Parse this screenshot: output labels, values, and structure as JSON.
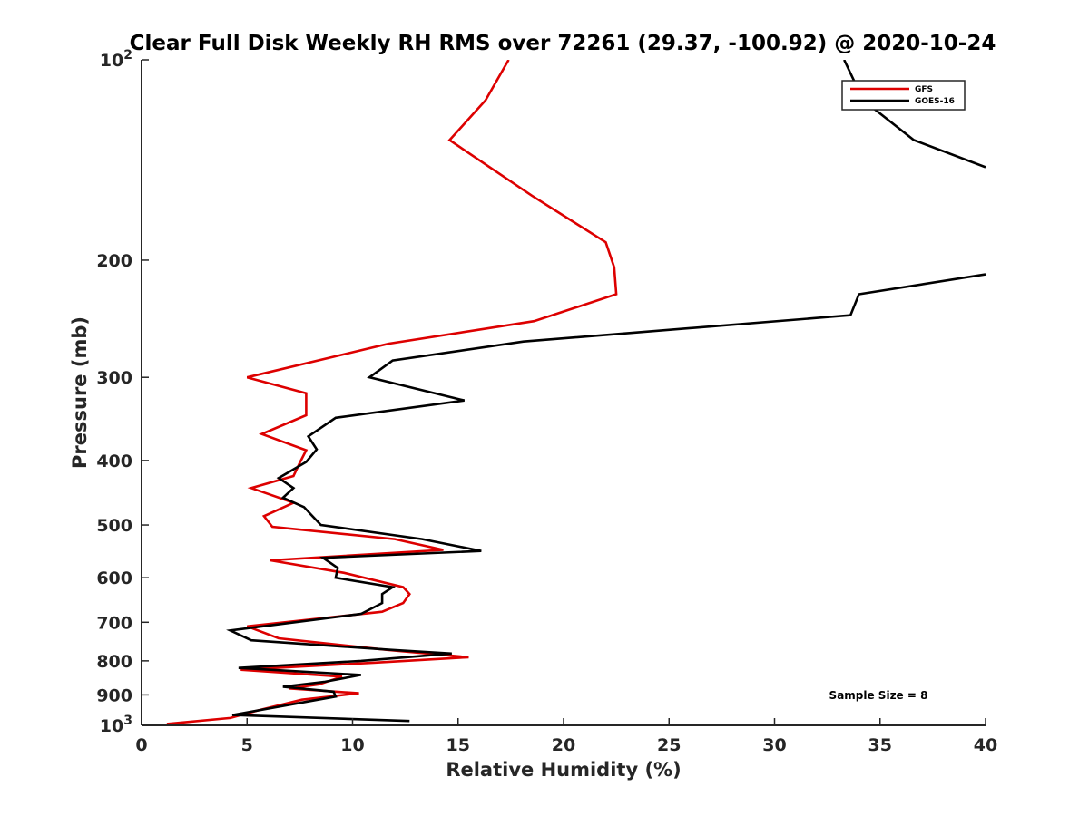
{
  "chart_data": {
    "type": "line",
    "title": "Clear Full Disk Weekly RH RMS over 72261 (29.37, -100.92) @ 2020-10-24",
    "xlabel": "Relative Humidity (%)",
    "ylabel": "Pressure (mb)",
    "xlim": [
      0,
      40
    ],
    "ylim": [
      100,
      1000
    ],
    "y_scale": "log",
    "y_reversed": true,
    "x_ticks": [
      "0",
      "5",
      "10",
      "15",
      "20",
      "25",
      "30",
      "35",
      "40"
    ],
    "y_ticks": [
      {
        "value": 100,
        "base": "10",
        "exp": "2"
      },
      {
        "value": 200,
        "label": "200"
      },
      {
        "value": 300,
        "label": "300"
      },
      {
        "value": 400,
        "label": "400"
      },
      {
        "value": 500,
        "label": "500"
      },
      {
        "value": 600,
        "label": "600"
      },
      {
        "value": 700,
        "label": "700"
      },
      {
        "value": 800,
        "label": "800"
      },
      {
        "value": 900,
        "label": "900"
      },
      {
        "value": 1000,
        "base": "10",
        "exp": "3"
      }
    ],
    "grid": false,
    "legend_position": "top-right",
    "series": [
      {
        "name": "GFS",
        "color": "#dd0000",
        "points": [
          [
            17.4,
            100
          ],
          [
            16.3,
            115
          ],
          [
            14.6,
            132
          ],
          [
            18.5,
            160
          ],
          [
            22.0,
            188
          ],
          [
            22.4,
            205
          ],
          [
            22.5,
            225
          ],
          [
            18.6,
            247
          ],
          [
            11.7,
            267
          ],
          [
            5.0,
            300
          ],
          [
            7.8,
            317
          ],
          [
            7.8,
            342
          ],
          [
            5.7,
            365
          ],
          [
            7.8,
            386
          ],
          [
            7.5,
            403
          ],
          [
            7.2,
            422
          ],
          [
            5.2,
            440
          ],
          [
            7.2,
            463
          ],
          [
            5.8,
            485
          ],
          [
            6.2,
            503
          ],
          [
            12.0,
            525
          ],
          [
            14.3,
            545
          ],
          [
            6.1,
            565
          ],
          [
            9.6,
            590
          ],
          [
            12.4,
            620
          ],
          [
            12.7,
            635
          ],
          [
            12.4,
            655
          ],
          [
            11.4,
            675
          ],
          [
            5.0,
            710
          ],
          [
            6.5,
            740
          ],
          [
            11.6,
            770
          ],
          [
            15.5,
            790
          ],
          [
            11.0,
            805
          ],
          [
            4.7,
            825
          ],
          [
            9.5,
            845
          ],
          [
            8.4,
            868
          ],
          [
            7.0,
            880
          ],
          [
            10.3,
            895
          ],
          [
            7.6,
            915
          ],
          [
            5.5,
            950
          ],
          [
            4.2,
            975
          ],
          [
            1.2,
            995
          ]
        ]
      },
      {
        "name": "GOES-16",
        "color": "#000000",
        "points": [
          [
            33.3,
            100
          ],
          [
            34.2,
            115
          ],
          [
            36.6,
            132
          ],
          [
            40.0,
            145
          ],
          null,
          [
            40.0,
            210
          ],
          [
            34.0,
            225
          ],
          [
            33.6,
            242
          ],
          [
            18.1,
            265
          ],
          [
            11.9,
            283
          ],
          [
            10.8,
            300
          ],
          [
            15.3,
            325
          ],
          [
            9.2,
            345
          ],
          [
            7.9,
            368
          ],
          [
            8.3,
            385
          ],
          [
            7.8,
            402
          ],
          [
            6.5,
            425
          ],
          [
            7.2,
            440
          ],
          [
            6.7,
            455
          ],
          [
            7.7,
            470
          ],
          [
            8.1,
            485
          ],
          [
            8.5,
            500
          ],
          [
            13.3,
            525
          ],
          [
            16.1,
            547
          ],
          [
            8.6,
            560
          ],
          [
            9.3,
            580
          ],
          [
            9.2,
            600
          ],
          [
            11.9,
            620
          ],
          [
            11.4,
            635
          ],
          [
            11.4,
            655
          ],
          [
            10.4,
            680
          ],
          [
            4.2,
            720
          ],
          [
            5.2,
            745
          ],
          [
            11.8,
            770
          ],
          [
            14.7,
            780
          ],
          [
            10.4,
            800
          ],
          [
            4.6,
            820
          ],
          [
            10.4,
            840
          ],
          [
            8.7,
            860
          ],
          [
            6.7,
            875
          ],
          [
            9.1,
            890
          ],
          [
            9.2,
            905
          ],
          [
            4.3,
            965
          ],
          [
            12.7,
            985
          ]
        ]
      }
    ],
    "annotations": [
      "Sample Size = 8"
    ]
  }
}
